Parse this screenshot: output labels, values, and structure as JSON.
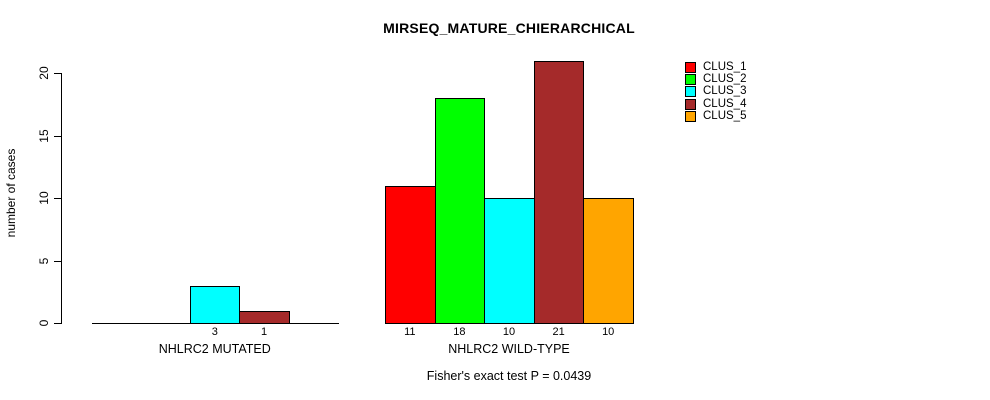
{
  "chart_data": {
    "type": "bar",
    "title": "MIRSEQ_MATURE_CHIERARCHICAL",
    "ylabel": "number of cases",
    "xlabel": "",
    "ylim": [
      0,
      20
    ],
    "yticks": [
      "0",
      "5",
      "10",
      "15",
      "20"
    ],
    "grid": false,
    "legend_position": "top-right",
    "legend": [
      {
        "name": "CLUS_1",
        "color": "#FF0000"
      },
      {
        "name": "CLUS_2",
        "color": "#00FF00"
      },
      {
        "name": "CLUS_3",
        "color": "#00FFFF"
      },
      {
        "name": "CLUS_4",
        "color": "#A52A2A"
      },
      {
        "name": "CLUS_5",
        "color": "#FFA500"
      }
    ],
    "categories": [
      "NHLRC2 MUTATED",
      "NHLRC2 WILD-TYPE"
    ],
    "series": [
      {
        "name": "CLUS_1",
        "values": [
          0,
          11
        ]
      },
      {
        "name": "CLUS_2",
        "values": [
          0,
          18
        ]
      },
      {
        "name": "CLUS_3",
        "values": [
          3,
          10
        ]
      },
      {
        "name": "CLUS_4",
        "values": [
          1,
          21
        ]
      },
      {
        "name": "CLUS_5",
        "values": [
          0,
          10
        ]
      }
    ],
    "groups": [
      {
        "label": "NHLRC2 MUTATED",
        "values": [
          0,
          0,
          3,
          1,
          0
        ],
        "bar_labels": [
          "",
          "",
          "3",
          "1",
          ""
        ]
      },
      {
        "label": "NHLRC2 WILD-TYPE",
        "values": [
          11,
          18,
          10,
          21,
          10
        ],
        "bar_labels": [
          "11",
          "18",
          "10",
          "21",
          "10"
        ]
      }
    ],
    "footnote": "Fisher's exact test P = 0.0439",
    "axis_color": "#000000",
    "background_color": "#FFFFFF"
  }
}
